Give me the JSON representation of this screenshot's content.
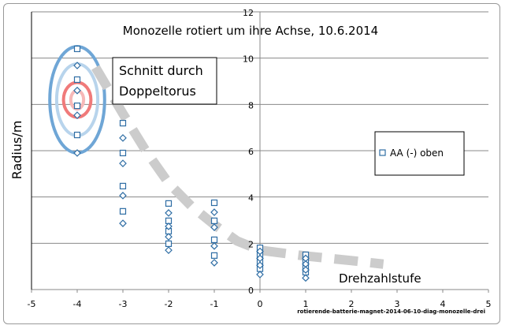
{
  "chart_data": {
    "type": "scatter",
    "title": "Monozelle  rotiert um ihre Achse, 10.6.2014",
    "xlabel": "Drehzahlstufe",
    "ylabel": "Radius/m",
    "xlim": [
      -5,
      5
    ],
    "ylim": [
      0,
      12
    ],
    "x_ticks": [
      -5,
      -4,
      -3,
      -2,
      -1,
      0,
      1,
      2,
      3,
      4,
      5
    ],
    "y_ticks": [
      0,
      2,
      4,
      6,
      8,
      10,
      12
    ],
    "grid": "horizontal",
    "legend": {
      "position": "right",
      "entries": [
        "AA (-) oben"
      ]
    },
    "annotation": "Schnitt durch Doppeltorus",
    "annotation_lines": [
      "Schnitt durch",
      "Doppeltorus"
    ],
    "footer": "rotierende-batterie-magnet-2014-06-10-diag-monozelle-drei",
    "colors": {
      "marker": "#2e6da4",
      "torus_outer": "#6fa6d6",
      "torus_mid": "#b8d4ec",
      "torus_red": "#f07a7a",
      "torus_pink": "#f6b8b8",
      "trend": "#cccccc"
    },
    "series": [
      {
        "name": "AA (-) oben",
        "marker": "square",
        "points": [
          [
            -4,
            10.4
          ],
          [
            -4,
            9.07
          ],
          [
            -4,
            7.94
          ],
          [
            -4,
            6.68
          ],
          [
            -3,
            7.19
          ],
          [
            -3,
            5.9
          ],
          [
            -3,
            4.47
          ],
          [
            -3,
            3.38
          ],
          [
            -2,
            3.72
          ],
          [
            -2,
            2.97
          ],
          [
            -2,
            2.52
          ],
          [
            -2,
            1.98
          ],
          [
            -1,
            3.75
          ],
          [
            -1,
            2.97
          ],
          [
            -1,
            2.15
          ],
          [
            -1,
            1.47
          ],
          [
            0,
            1.8
          ],
          [
            0,
            1.5
          ],
          [
            0,
            1.2
          ],
          [
            0,
            0.9
          ],
          [
            1,
            1.5
          ],
          [
            1,
            1.25
          ],
          [
            1,
            1.0
          ],
          [
            1,
            0.75
          ]
        ]
      },
      {
        "name": "",
        "marker": "diamond",
        "points": [
          [
            -4,
            9.68
          ],
          [
            -4,
            8.6
          ],
          [
            -4,
            7.53
          ],
          [
            -4,
            5.9
          ],
          [
            -3,
            6.55
          ],
          [
            -3,
            5.45
          ],
          [
            -3,
            4.06
          ],
          [
            -3,
            2.86
          ],
          [
            -2,
            3.31
          ],
          [
            -2,
            2.73
          ],
          [
            -2,
            2.28
          ],
          [
            -2,
            1.7
          ],
          [
            -1,
            3.34
          ],
          [
            -1,
            2.69
          ],
          [
            -1,
            1.88
          ],
          [
            -1,
            1.16
          ],
          [
            0,
            1.65
          ],
          [
            0,
            1.35
          ],
          [
            0,
            1.05
          ],
          [
            0,
            0.65
          ],
          [
            1,
            1.35
          ],
          [
            1,
            1.1
          ],
          [
            1,
            0.85
          ],
          [
            1,
            0.5
          ]
        ]
      }
    ],
    "trend_curve": [
      [
        -3.6,
        9.6
      ],
      [
        -3,
        7.6
      ],
      [
        -2.5,
        6.0
      ],
      [
        -2,
        4.6
      ],
      [
        -1.5,
        3.6
      ],
      [
        -1,
        2.8
      ],
      [
        -0.5,
        2.1
      ],
      [
        0,
        1.7
      ],
      [
        1,
        1.45
      ],
      [
        2,
        1.25
      ],
      [
        2.7,
        1.1
      ]
    ],
    "torus": {
      "center": [
        -4,
        8.2
      ],
      "rings": [
        {
          "rx": 0.6,
          "ry": 2.3,
          "color": "torus_outer"
        },
        {
          "rx": 0.45,
          "ry": 1.55,
          "color": "torus_mid"
        },
        {
          "rx": 0.3,
          "ry": 0.75,
          "color": "torus_red"
        },
        {
          "rx": 0.14,
          "ry": 0.4,
          "color": "torus_pink"
        }
      ]
    }
  }
}
